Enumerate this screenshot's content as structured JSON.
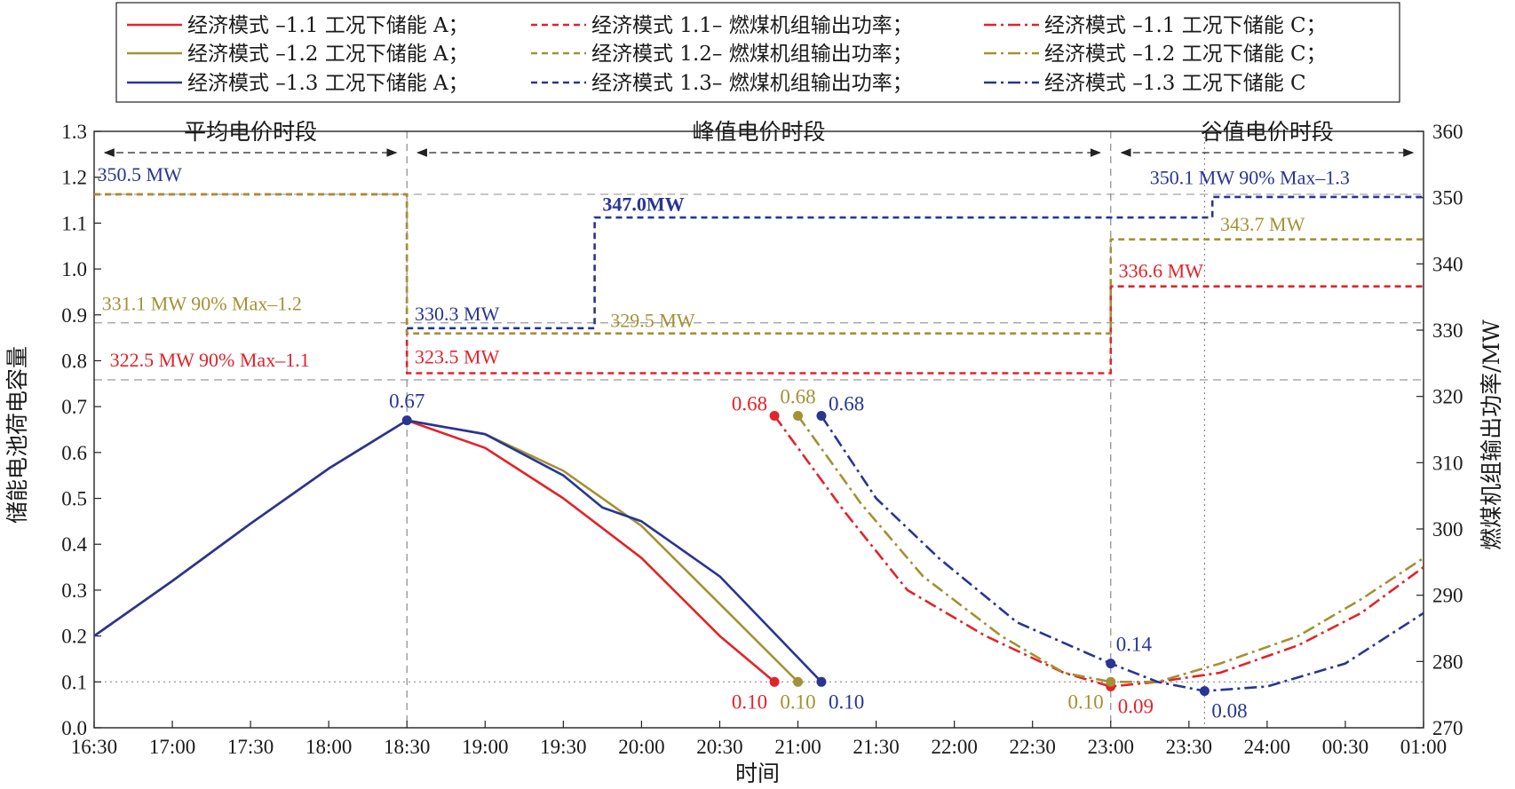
{
  "colors": {
    "red": "#e2232a",
    "gold": "#a39134",
    "blue": "#283593"
  },
  "legend": [
    {
      "text": "经济模式 –1.1 工况下储能 A；",
      "color": "#e2232a",
      "dash": "solid"
    },
    {
      "text": "经济模式 1.1– 燃煤机组输出功率；",
      "color": "#e2232a",
      "dash": "dash"
    },
    {
      "text": "经济模式 –1.1 工况下储能 C；",
      "color": "#e2232a",
      "dash": "dashdot"
    },
    {
      "text": "经济模式 –1.2 工况下储能 A；",
      "color": "#a39134",
      "dash": "solid"
    },
    {
      "text": "经济模式 1.2– 燃煤机组输出功率；",
      "color": "#a39134",
      "dash": "dash"
    },
    {
      "text": "经济模式 –1.2 工况下储能 C；",
      "color": "#a39134",
      "dash": "dashdot"
    },
    {
      "text": "经济模式 –1.3 工况下储能 A；",
      "color": "#283593",
      "dash": "solid"
    },
    {
      "text": "经济模式 1.3– 燃煤机组输出功率；",
      "color": "#283593",
      "dash": "dash"
    },
    {
      "text": "经济模式 –1.3 工况下储能 C",
      "color": "#283593",
      "dash": "dashdot"
    }
  ],
  "chart_data": {
    "type": "line",
    "xlabel": "时间",
    "ylabel_left": "储能电池荷电容量",
    "ylabel_right": "燃煤机组输出功率/MW",
    "x_ticks": [
      "16:30",
      "17:00",
      "17:30",
      "18:00",
      "18:30",
      "19:00",
      "19:30",
      "20:00",
      "20:30",
      "21:00",
      "21:30",
      "22:00",
      "22:30",
      "23:00",
      "23:30",
      "24:00",
      "00:30",
      "01:00"
    ],
    "x_range_hours": [
      16.5,
      25.0
    ],
    "y_left_range": [
      0.0,
      1.3
    ],
    "y_left_ticks": [
      "0.0",
      "0.1",
      "0.2",
      "0.3",
      "0.4",
      "0.5",
      "0.6",
      "0.7",
      "0.8",
      "0.9",
      "1.0",
      "1.1",
      "1.2",
      "1.3"
    ],
    "y_right_range": [
      270,
      360
    ],
    "y_right_ticks": [
      "270",
      "280",
      "290",
      "300",
      "310",
      "320",
      "330",
      "340",
      "350",
      "360"
    ],
    "periods": [
      {
        "label": "平均电价时段",
        "start": 16.5,
        "end": 18.5
      },
      {
        "label": "峰值电价时段",
        "start": 18.5,
        "end": 23.0
      },
      {
        "label": "谷值电价时段",
        "start": 23.0,
        "end": 25.0
      }
    ],
    "vlines": [
      18.5,
      23.0,
      23.6
    ],
    "hlines_right": [
      350.5,
      331.1,
      322.5
    ],
    "hline_left_dotted": 0.1,
    "soc_series": [
      {
        "name": "经济模式 –1.1 工况下储能 A",
        "color": "#e2232a",
        "dash": "solid",
        "points": [
          [
            16.5,
            0.2
          ],
          [
            17.0,
            0.32
          ],
          [
            17.5,
            0.445
          ],
          [
            18.0,
            0.565
          ],
          [
            18.5,
            0.67
          ],
          [
            19.0,
            0.61
          ],
          [
            19.5,
            0.5
          ],
          [
            20.0,
            0.37
          ],
          [
            20.5,
            0.2
          ],
          [
            20.85,
            0.1
          ]
        ]
      },
      {
        "name": "经济模式 –1.2 工况下储能 A",
        "color": "#a39134",
        "dash": "solid",
        "points": [
          [
            16.5,
            0.2
          ],
          [
            17.0,
            0.32
          ],
          [
            17.5,
            0.445
          ],
          [
            18.0,
            0.565
          ],
          [
            18.5,
            0.67
          ],
          [
            19.0,
            0.64
          ],
          [
            19.5,
            0.56
          ],
          [
            20.0,
            0.44
          ],
          [
            20.5,
            0.27
          ],
          [
            21.0,
            0.1
          ]
        ]
      },
      {
        "name": "经济模式 –1.3 工况下储能 A",
        "color": "#283593",
        "dash": "solid",
        "points": [
          [
            16.5,
            0.2
          ],
          [
            17.0,
            0.32
          ],
          [
            17.5,
            0.445
          ],
          [
            18.0,
            0.565
          ],
          [
            18.5,
            0.67
          ],
          [
            19.0,
            0.64
          ],
          [
            19.5,
            0.55
          ],
          [
            19.75,
            0.48
          ],
          [
            20.0,
            0.45
          ],
          [
            20.5,
            0.33
          ],
          [
            21.15,
            0.1
          ]
        ]
      },
      {
        "name": "经济模式 –1.1 工况下储能 C",
        "color": "#e2232a",
        "dash": "dashdot",
        "points": [
          [
            20.85,
            0.68
          ],
          [
            21.3,
            0.47
          ],
          [
            21.7,
            0.3
          ],
          [
            22.2,
            0.2
          ],
          [
            22.7,
            0.12
          ],
          [
            23.0,
            0.09
          ],
          [
            23.3,
            0.1
          ],
          [
            23.7,
            0.12
          ],
          [
            24.2,
            0.18
          ],
          [
            24.6,
            0.25
          ],
          [
            25.0,
            0.35
          ]
        ]
      },
      {
        "name": "经济模式 –1.2 工况下储能 C",
        "color": "#a39134",
        "dash": "dashdot",
        "points": [
          [
            21.0,
            0.68
          ],
          [
            21.4,
            0.49
          ],
          [
            21.8,
            0.33
          ],
          [
            22.3,
            0.2
          ],
          [
            22.7,
            0.12
          ],
          [
            23.0,
            0.1
          ],
          [
            23.3,
            0.1
          ],
          [
            23.7,
            0.14
          ],
          [
            24.2,
            0.2
          ],
          [
            24.6,
            0.28
          ],
          [
            25.0,
            0.37
          ]
        ]
      },
      {
        "name": "经济模式 –1.3 工况下储能 C",
        "color": "#283593",
        "dash": "dashdot",
        "points": [
          [
            21.15,
            0.68
          ],
          [
            21.5,
            0.5
          ],
          [
            21.9,
            0.37
          ],
          [
            22.4,
            0.23
          ],
          [
            23.0,
            0.14
          ],
          [
            23.3,
            0.1
          ],
          [
            23.6,
            0.08
          ],
          [
            24.0,
            0.09
          ],
          [
            24.5,
            0.14
          ],
          [
            25.0,
            0.25
          ]
        ]
      }
    ],
    "power_series": [
      {
        "name": "经济模式 1.1– 燃煤机组输出功率",
        "color": "#e2232a",
        "dash": "dash",
        "points": [
          [
            16.5,
            350.5
          ],
          [
            18.5,
            350.5
          ],
          [
            18.5,
            323.5
          ],
          [
            23.0,
            323.5
          ],
          [
            23.0,
            336.6
          ],
          [
            25.0,
            336.6
          ]
        ]
      },
      {
        "name": "经济模式 1.2– 燃煤机组输出功率",
        "color": "#a39134",
        "dash": "dash",
        "points": [
          [
            16.5,
            350.5
          ],
          [
            18.5,
            350.5
          ],
          [
            18.5,
            329.5
          ],
          [
            23.0,
            329.5
          ],
          [
            23.0,
            343.7
          ],
          [
            25.0,
            343.7
          ]
        ]
      },
      {
        "name": "经济模式 1.3– 燃煤机组输出功率",
        "color": "#283593",
        "dash": "dash",
        "points": [
          [
            18.5,
            330.3
          ],
          [
            19.7,
            330.3
          ],
          [
            19.7,
            347.0
          ],
          [
            23.65,
            347.0
          ],
          [
            23.65,
            350.1
          ],
          [
            25.0,
            350.1
          ]
        ]
      }
    ],
    "markers": [
      {
        "x": 18.5,
        "y": 0.67,
        "color": "#283593",
        "label": "0.67",
        "pos": "above"
      },
      {
        "x": 20.85,
        "y": 0.1,
        "color": "#e2232a",
        "label": "0.10",
        "pos": "below-left"
      },
      {
        "x": 21.0,
        "y": 0.1,
        "color": "#a39134",
        "label": "0.10",
        "pos": "below"
      },
      {
        "x": 21.15,
        "y": 0.1,
        "color": "#283593",
        "label": "0.10",
        "pos": "below-right"
      },
      {
        "x": 20.85,
        "y": 0.68,
        "color": "#e2232a",
        "label": "0.68",
        "pos": "left"
      },
      {
        "x": 21.0,
        "y": 0.68,
        "color": "#a39134",
        "label": "0.68",
        "pos": "above"
      },
      {
        "x": 21.15,
        "y": 0.68,
        "color": "#283593",
        "label": "0.68",
        "pos": "right"
      },
      {
        "x": 23.0,
        "y": 0.14,
        "color": "#283593",
        "label": "0.14",
        "pos": "above-right"
      },
      {
        "x": 23.0,
        "y": 0.09,
        "color": "#e2232a",
        "label": "0.09",
        "pos": "below-right"
      },
      {
        "x": 23.0,
        "y": 0.1,
        "color": "#a39134",
        "label": "0.10",
        "pos": "below-left"
      },
      {
        "x": 23.6,
        "y": 0.08,
        "color": "#283593",
        "label": "0.08",
        "pos": "below-right"
      }
    ],
    "annotations": [
      {
        "text": "350.5 MW",
        "color": "#283593",
        "at": [
          16.52,
          352.5
        ]
      },
      {
        "text": "331.1 MW 90% Max–1.2",
        "color": "#a39134",
        "at": [
          16.55,
          333.0
        ]
      },
      {
        "text": "322.5 MW 90% Max–1.1",
        "color": "#e2232a",
        "at": [
          16.6,
          324.5
        ]
      },
      {
        "text": "330.3 MW",
        "color": "#283593",
        "at": [
          18.55,
          331.5
        ]
      },
      {
        "text": "323.5 MW",
        "color": "#e2232a",
        "at": [
          18.55,
          325.0
        ]
      },
      {
        "text": "329.5 MW",
        "color": "#a39134",
        "at": [
          19.8,
          330.5
        ]
      },
      {
        "text": "347.0MW",
        "color": "#283593",
        "at": [
          19.75,
          348.0
        ],
        "bold": true
      },
      {
        "text": "336.6 MW",
        "color": "#e2232a",
        "at": [
          23.05,
          338.0
        ]
      },
      {
        "text": "343.7 MW",
        "color": "#a39134",
        "at": [
          23.7,
          345.0
        ]
      },
      {
        "text": "350.1 MW 90% Max–1.3",
        "color": "#283593",
        "at": [
          23.25,
          352.0
        ]
      }
    ]
  }
}
